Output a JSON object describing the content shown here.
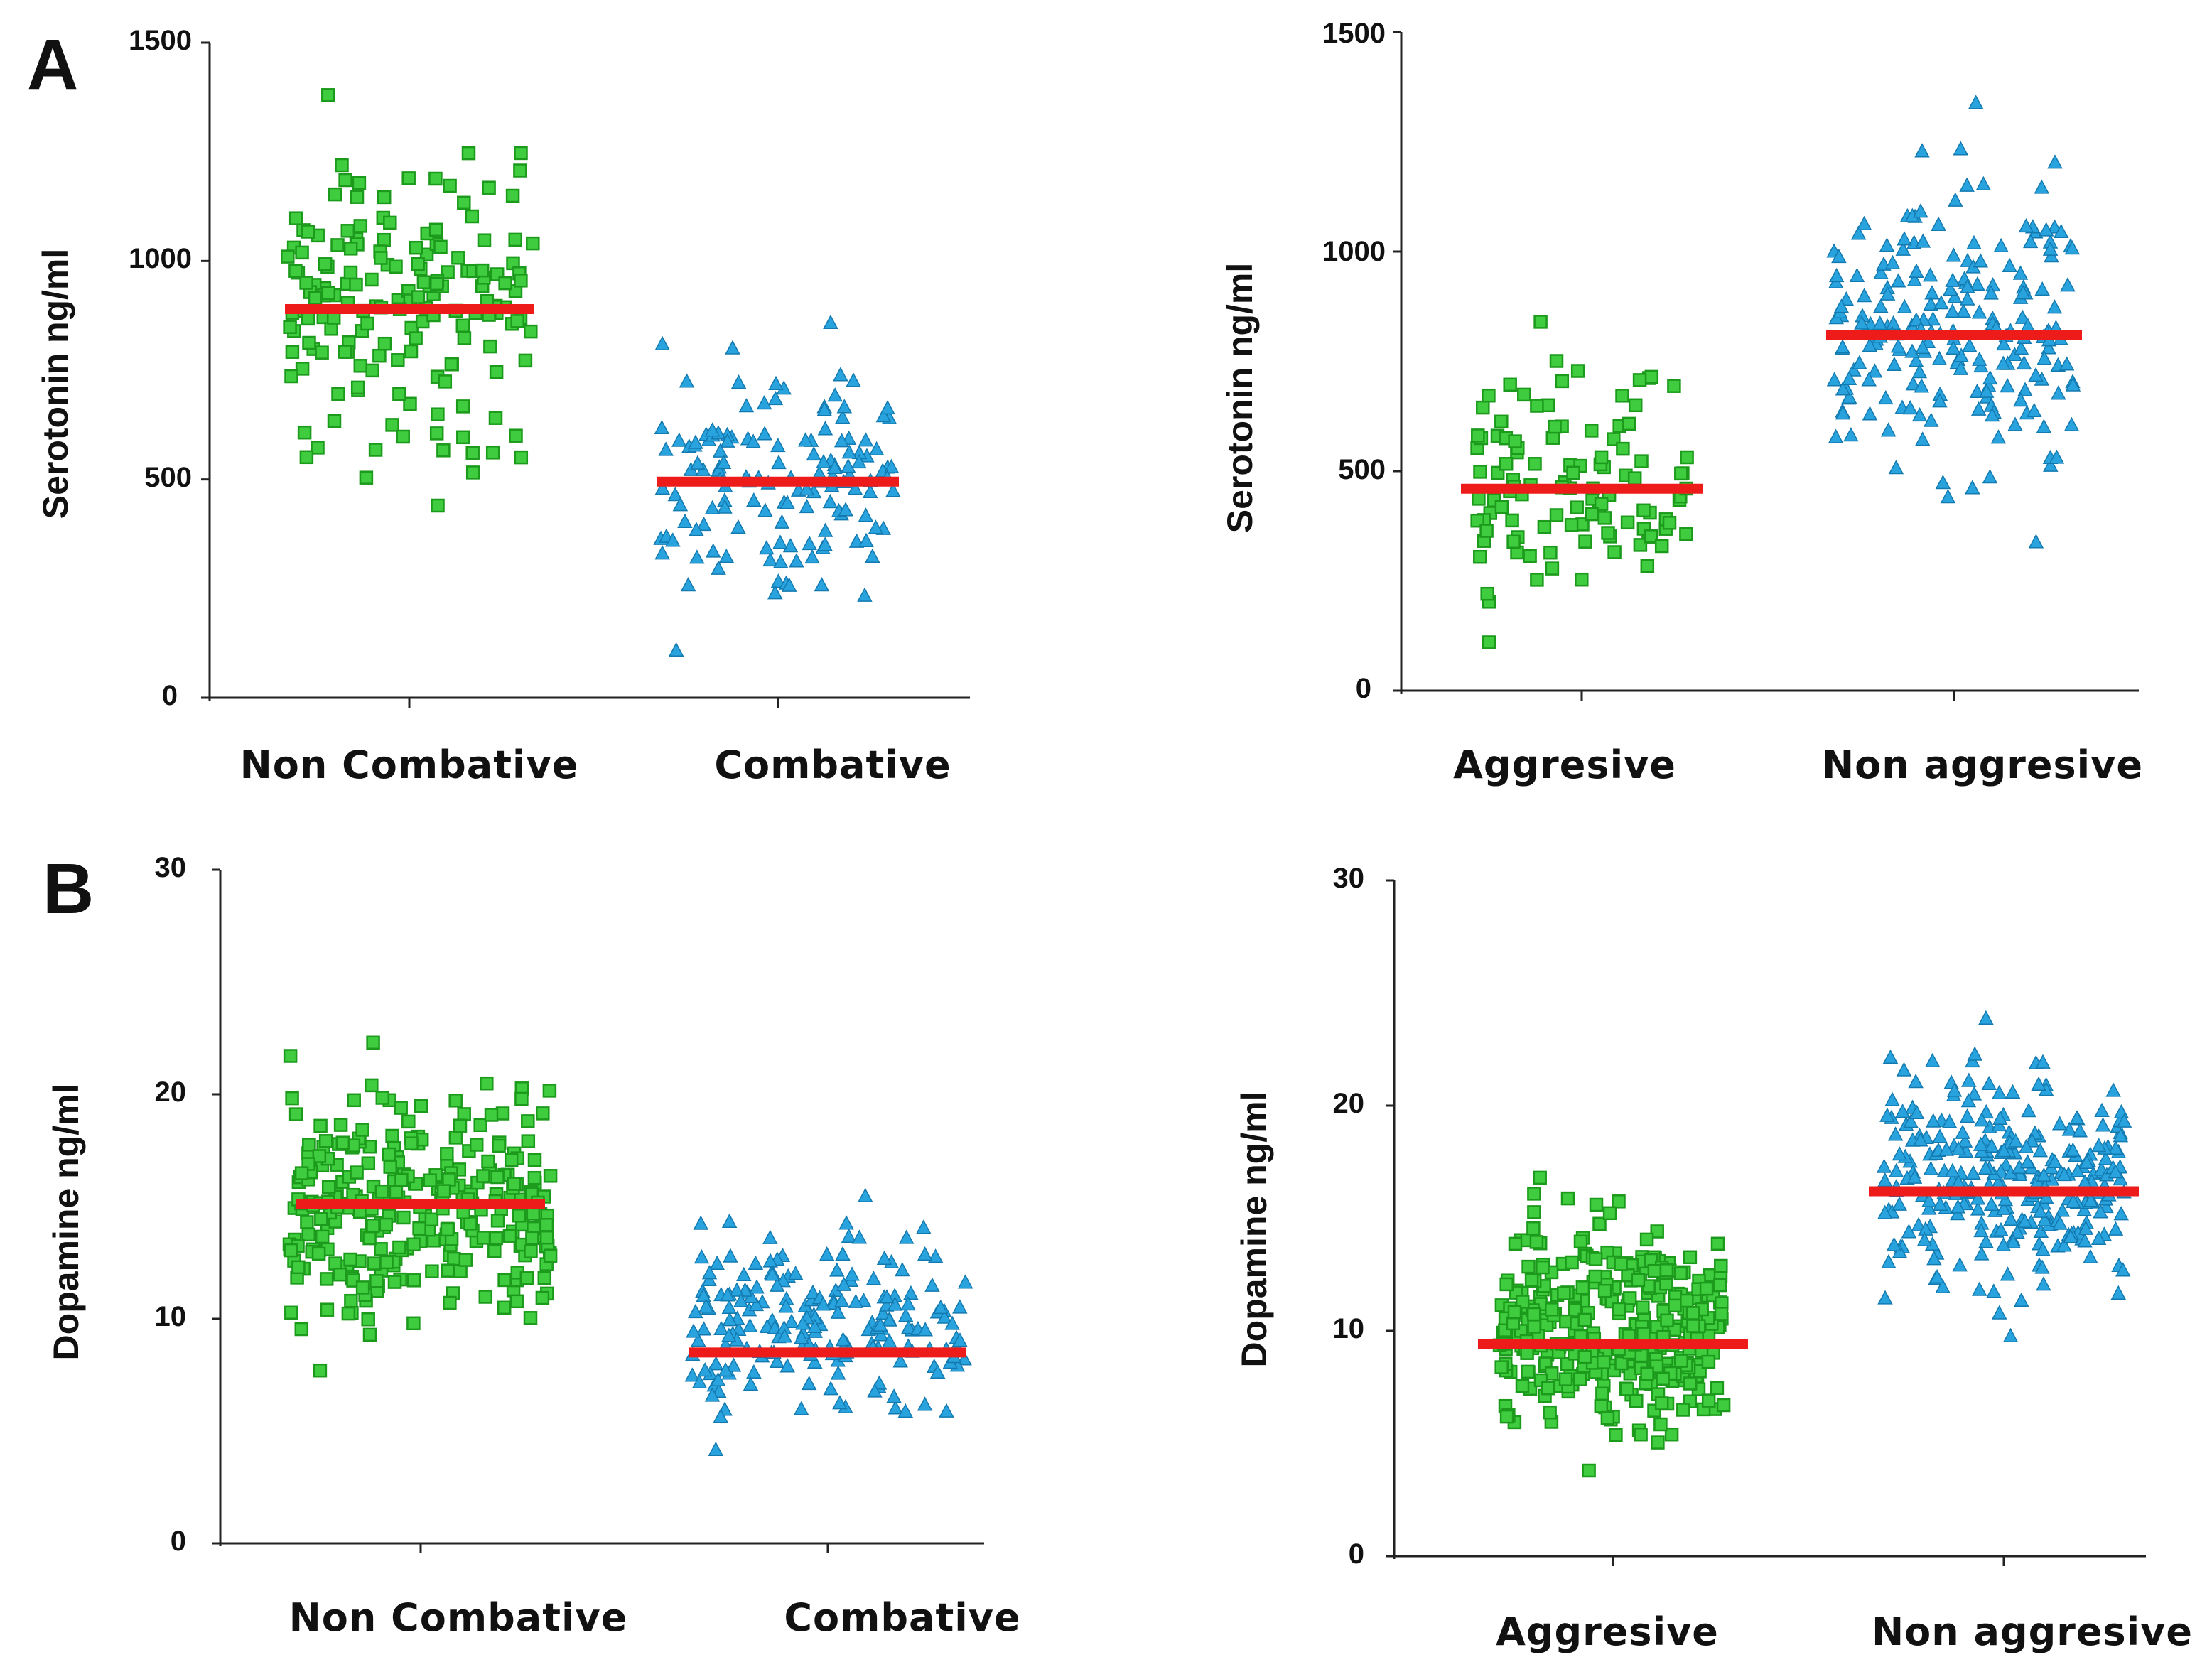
{
  "panels": {
    "A": {
      "letter": "A"
    },
    "B": {
      "letter": "B"
    }
  },
  "colors": {
    "green_fill": "#3fcc3f",
    "green_stroke": "#1c9a1c",
    "blue_fill": "#29a3de",
    "blue_stroke": "#137ab0",
    "median_line": "#ee1b1b"
  },
  "chart_data": [
    {
      "id": "serotonin-combative",
      "type": "scatter",
      "title": "",
      "ylabel": "Serotonin ng/ml",
      "ylim": [
        0,
        1500
      ],
      "yticks": [
        "0",
        "500",
        "1000",
        "1500"
      ],
      "categories": [
        "Non Combative",
        "Combative"
      ],
      "series": [
        {
          "name": "Non Combative",
          "marker": "square",
          "color": "green",
          "n": 170,
          "min": 440,
          "max": 1380,
          "median": 890
        },
        {
          "name": "Combative",
          "marker": "triangle",
          "color": "blue",
          "n": 140,
          "min": 110,
          "max": 860,
          "median": 495
        }
      ]
    },
    {
      "id": "serotonin-aggressive",
      "type": "scatter",
      "title": "",
      "ylabel": "Serotonin ng/ml",
      "ylim": [
        0,
        1500
      ],
      "yticks": [
        "0",
        "500",
        "1000",
        "1500"
      ],
      "categories": [
        "Aggresive",
        "Non aggresive"
      ],
      "series": [
        {
          "name": "Aggresive",
          "marker": "square",
          "color": "green",
          "n": 110,
          "min": 110,
          "max": 840,
          "median": 460
        },
        {
          "name": "Non aggresive",
          "marker": "triangle",
          "color": "blue",
          "n": 210,
          "min": 340,
          "max": 1340,
          "median": 810
        }
      ]
    },
    {
      "id": "dopamine-combative",
      "type": "scatter",
      "title": "",
      "ylabel": "Dopamine ng/ml",
      "ylim": [
        0,
        30
      ],
      "yticks": [
        "0",
        "10",
        "20",
        "30"
      ],
      "categories": [
        "Non Combative",
        "Combative"
      ],
      "series": [
        {
          "name": "Non Combative",
          "marker": "square",
          "color": "green",
          "n": 300,
          "min": 7.7,
          "max": 22.3,
          "median": 15.1
        },
        {
          "name": "Combative",
          "marker": "triangle",
          "color": "blue",
          "n": 200,
          "min": 4.2,
          "max": 15.5,
          "median": 8.5
        }
      ]
    },
    {
      "id": "dopamine-aggressive",
      "type": "scatter",
      "title": "",
      "ylabel": "Dopamine ng/ml",
      "ylim": [
        0,
        30
      ],
      "yticks": [
        "0",
        "10",
        "20",
        "30"
      ],
      "categories": [
        "Aggresive",
        "Non aggresive"
      ],
      "series": [
        {
          "name": "Aggresive",
          "marker": "square",
          "color": "green",
          "n": 330,
          "min": 3.8,
          "max": 16.8,
          "median": 9.4
        },
        {
          "name": "Non aggresive",
          "marker": "triangle",
          "color": "blue",
          "n": 280,
          "min": 9.8,
          "max": 23.9,
          "median": 16.2
        }
      ]
    }
  ]
}
